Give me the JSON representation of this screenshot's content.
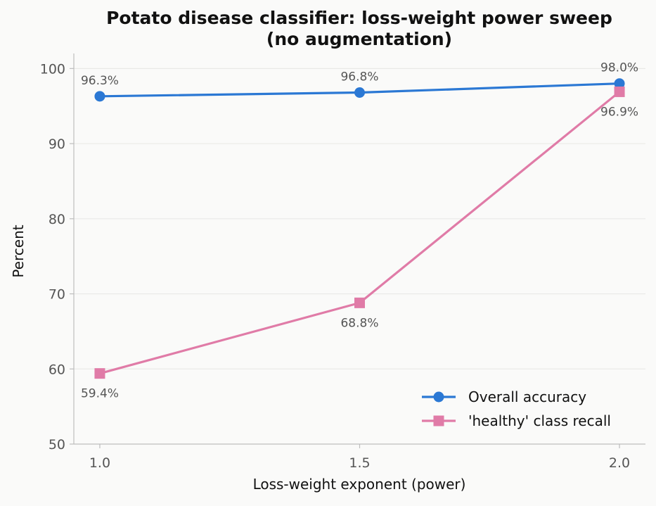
{
  "chart_data": {
    "type": "line",
    "title_line1": "Potato disease classifier: loss-weight power sweep",
    "title_line2": "(no augmentation)",
    "xlabel": "Loss-weight exponent (power)",
    "ylabel": "Percent",
    "x": [
      1.0,
      1.5,
      2.0
    ],
    "x_tick_labels": [
      "1.0",
      "1.5",
      "2.0"
    ],
    "xlim": [
      0.95,
      2.05
    ],
    "ylim": [
      50,
      102
    ],
    "y_ticks": [
      50,
      60,
      70,
      80,
      90,
      100
    ],
    "y_tick_labels": [
      "50",
      "60",
      "70",
      "80",
      "90",
      "100"
    ],
    "grid": "horizontal",
    "legend_position": "lower-right",
    "series": [
      {
        "name": "Overall accuracy",
        "marker": "circle",
        "color": "#2b78d4",
        "values": [
          96.3,
          96.8,
          98.0
        ],
        "labels": [
          "96.3%",
          "96.8%",
          "98.0%"
        ],
        "label_side": [
          "above",
          "above",
          "above"
        ]
      },
      {
        "name": "'healthy' class recall",
        "marker": "square",
        "color": "#e07ba7",
        "values": [
          59.4,
          68.8,
          96.9
        ],
        "labels": [
          "59.4%",
          "68.8%",
          "96.9%"
        ],
        "label_side": [
          "below",
          "below",
          "below"
        ]
      }
    ]
  }
}
